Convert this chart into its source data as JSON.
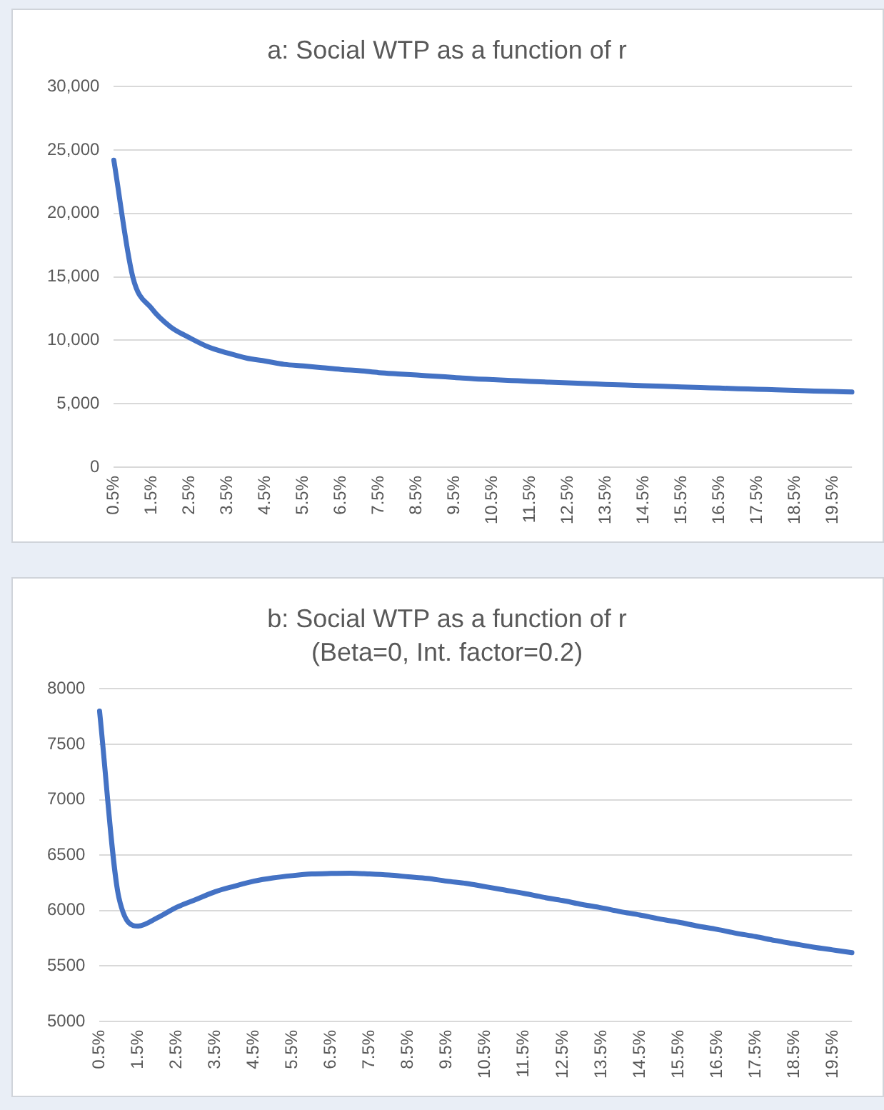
{
  "chart_data": [
    {
      "type": "line",
      "title": "a: Social WTP as a function of r",
      "categories": [
        "0.5%",
        null,
        "1.5%",
        null,
        "2.5%",
        null,
        "3.5%",
        null,
        "4.5%",
        null,
        "5.5%",
        null,
        "6.5%",
        null,
        "7.5%",
        null,
        "8.5%",
        null,
        "9.5%",
        null,
        "10.5%",
        null,
        "11.5%",
        null,
        "12.5%",
        null,
        "13.5%",
        null,
        "14.5%",
        null,
        "15.5%",
        null,
        "16.5%",
        null,
        "17.5%",
        null,
        "18.5%",
        null,
        "19.5%",
        null
      ],
      "values": [
        24200,
        15000,
        12500,
        11050,
        10200,
        9470,
        9000,
        8600,
        8360,
        8100,
        7980,
        7840,
        7700,
        7600,
        7450,
        7350,
        7260,
        7160,
        7070,
        6970,
        6900,
        6830,
        6760,
        6700,
        6640,
        6580,
        6520,
        6470,
        6420,
        6370,
        6320,
        6270,
        6230,
        6180,
        6140,
        6090,
        6050,
        6000,
        5960,
        5920
      ],
      "color": "#4472c4",
      "ylim": [
        0,
        30000
      ],
      "yticks": [
        {
          "value": 0,
          "label": "0"
        },
        {
          "value": 5000,
          "label": "5,000"
        },
        {
          "value": 10000,
          "label": "10,000"
        },
        {
          "value": 15000,
          "label": "15,000"
        },
        {
          "value": 20000,
          "label": "20,000"
        },
        {
          "value": 25000,
          "label": "25,000"
        },
        {
          "value": 30000,
          "label": "30,000"
        }
      ],
      "grid": "y"
    },
    {
      "type": "line",
      "title": "b: Social WTP as a function of r",
      "subtitle": "(Beta=0, Int. factor=0.2)",
      "categories": [
        "0.5%",
        null,
        "1.5%",
        null,
        "2.5%",
        null,
        "3.5%",
        null,
        "4.5%",
        null,
        "5.5%",
        null,
        "6.5%",
        null,
        "7.5%",
        null,
        "8.5%",
        null,
        "9.5%",
        null,
        "10.5%",
        null,
        "11.5%",
        null,
        "12.5%",
        null,
        "13.5%",
        null,
        "14.5%",
        null,
        "15.5%",
        null,
        "16.5%",
        null,
        "17.5%",
        null,
        "18.5%",
        null,
        "19.5%",
        null
      ],
      "values": [
        7800,
        6120,
        5860,
        5935,
        6030,
        6100,
        6170,
        6220,
        6265,
        6295,
        6315,
        6330,
        6335,
        6337,
        6330,
        6320,
        6305,
        6290,
        6265,
        6245,
        6215,
        6185,
        6155,
        6120,
        6090,
        6055,
        6025,
        5990,
        5960,
        5925,
        5895,
        5860,
        5830,
        5795,
        5765,
        5730,
        5700,
        5670,
        5645,
        5620
      ],
      "color": "#4472c4",
      "ylim": [
        5000,
        8000
      ],
      "yticks": [
        5000,
        5500,
        6000,
        6500,
        7000,
        7500,
        8000
      ],
      "grid": "y"
    }
  ]
}
